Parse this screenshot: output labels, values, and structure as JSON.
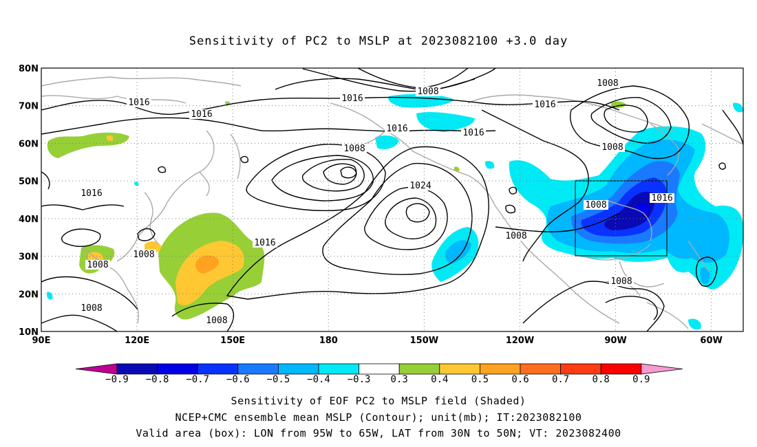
{
  "title": "Sensitivity of PC2 to MSLP at 2023082100 +3.0 day",
  "map": {
    "lat_labels": [
      "80N",
      "70N",
      "60N",
      "50N",
      "40N",
      "30N",
      "20N",
      "10N"
    ],
    "lon_labels": [
      "90E",
      "120E",
      "150E",
      "180",
      "150W",
      "120W",
      "90W",
      "60W"
    ],
    "extent": {
      "lon_min": 90,
      "lon_max": 310,
      "lat_min": 10,
      "lat_max": 80
    },
    "valid_box": {
      "lon_from": "95W",
      "lon_to": "65W",
      "lat_from": "30N",
      "lat_to": "50N"
    },
    "contour_labels": [
      "1016",
      "1016",
      "1016",
      "1016",
      "1016",
      "1016",
      "1016",
      "1016",
      "1016",
      "1008",
      "1008",
      "1008",
      "1008",
      "1008",
      "1008",
      "1008",
      "1008",
      "1008",
      "1008",
      "1024"
    ]
  },
  "colorbar": {
    "labels": [
      "−0.9",
      "−0.8",
      "−0.7",
      "−0.6",
      "−0.5",
      "−0.4",
      "−0.3",
      "0.3",
      "0.4",
      "0.5",
      "0.6",
      "0.7",
      "0.8",
      "0.9"
    ],
    "colors": [
      "#bf0094",
      "#0a0ab4",
      "#0000e6",
      "#0a32ff",
      "#1a7aff",
      "#00b8ff",
      "#00eaf5",
      "#ffffff",
      "#97cf37",
      "#ffc832",
      "#ffa21f",
      "#ff6e1e",
      "#ff3c14",
      "#ff0000",
      "#f69ad2"
    ]
  },
  "captions": {
    "line1": "Sensitivity of EOF PC2 to MSLP field (Shaded)",
    "line2": "NCEP+CMC ensemble mean MSLP (Contour); unit(mb); IT:2023082100",
    "line3": "Valid area (box): LON from 95W to 65W, LAT from 30N to 50N; VT: 2023082400"
  }
}
